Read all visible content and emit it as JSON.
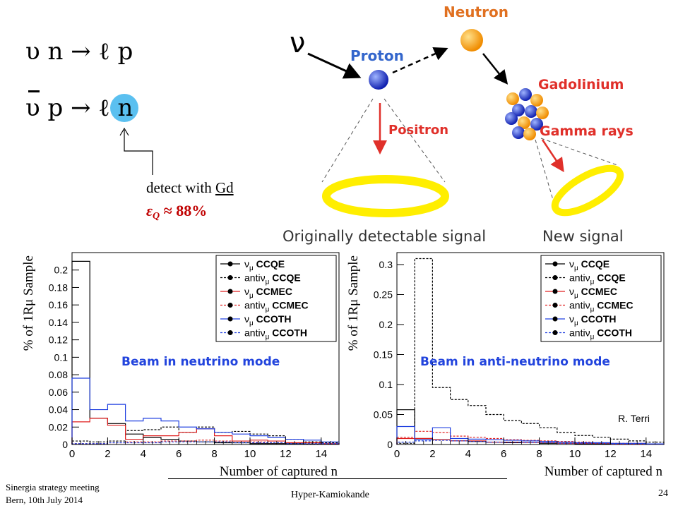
{
  "equations": {
    "eq1_text": "υ n → ℓ p",
    "eq2_left": "υ p → ℓ ",
    "eq2_n": "n"
  },
  "annotation": {
    "detect_prefix": "detect with ",
    "detect_element": "Gd",
    "efficiency_symbol": "ε",
    "efficiency_sub": "Q",
    "efficiency_value": " ≈ 88%"
  },
  "schematic": {
    "nu_symbol": "ν",
    "proton": "Proton",
    "neutron": "Neutron",
    "gadolinium": "Gadolinium",
    "positron": "Positron",
    "gamma_rays": "Gamma rays",
    "label_original": "Originally detectable signal",
    "label_new": "New signal",
    "colors": {
      "blue_label": "#3366cc",
      "orange_label": "#e07020",
      "red_label": "#e0302a",
      "ring": "#ffee00"
    }
  },
  "chart_data": [
    {
      "type": "histogram",
      "ylabel": "% of 1Rμ Sample",
      "xlabel": "Number of captured n",
      "annotation": "Beam in neutrino mode",
      "xlim": [
        0,
        15
      ],
      "ylim": [
        0,
        0.22
      ],
      "xticks": [
        "0",
        "2",
        "4",
        "6",
        "8",
        "10",
        "12",
        "14"
      ],
      "yticks": [
        "0",
        "0.02",
        "0.04",
        "0.06",
        "0.08",
        "0.1",
        "0.12",
        "0.14",
        "0.16",
        "0.18",
        "0.2"
      ],
      "bins": [
        0,
        1,
        2,
        3,
        4,
        5,
        6,
        7,
        8,
        9,
        10,
        11,
        12,
        13,
        14,
        15
      ],
      "legend_position": "top-right",
      "series": [
        {
          "name_pre": "ν",
          "name_sub": "μ",
          "name_post": " CCQE",
          "color": "#000000",
          "dash": false,
          "values": [
            0.21,
            0.03,
            0.024,
            0.012,
            0.008,
            0.006,
            0.004,
            0.003,
            0.002,
            0.002,
            0.001,
            0.001,
            0.001,
            0.0005,
            0.0005
          ]
        },
        {
          "name_pre": "antiν",
          "name_sub": "μ",
          "name_post": " CCQE",
          "color": "#000000",
          "dash": true,
          "values": [
            0.004,
            0.003,
            0.004,
            0.016,
            0.017,
            0.02,
            0.014,
            0.02,
            0.014,
            0.015,
            0.012,
            0.01,
            0.006,
            0.003,
            0.002
          ]
        },
        {
          "name_pre": "ν",
          "name_sub": "μ",
          "name_post": " CCMEC",
          "color": "#e02020",
          "dash": false,
          "values": [
            0.026,
            0.03,
            0.022,
            0.006,
            0.01,
            0.01,
            0.014,
            0.018,
            0.01,
            0.004,
            0.005,
            0.004,
            0.002,
            0.002,
            0.001
          ]
        },
        {
          "name_pre": "antiν",
          "name_sub": "μ",
          "name_post": " CCMEC",
          "color": "#e02020",
          "dash": true,
          "values": [
            0.001,
            0.001,
            0.002,
            0.003,
            0.003,
            0.004,
            0.004,
            0.005,
            0.004,
            0.004,
            0.003,
            0.002,
            0.002,
            0.001,
            0.001
          ]
        },
        {
          "name_pre": "ν",
          "name_sub": "μ",
          "name_post": " CCOTH",
          "color": "#2040e0",
          "dash": false,
          "values": [
            0.076,
            0.04,
            0.046,
            0.027,
            0.03,
            0.027,
            0.02,
            0.018,
            0.014,
            0.012,
            0.01,
            0.008,
            0.006,
            0.005,
            0.003
          ]
        },
        {
          "name_pre": "antiν",
          "name_sub": "μ",
          "name_post": " CCOTH",
          "color": "#2040e0",
          "dash": true,
          "values": [
            0.001,
            0.001,
            0.002,
            0.002,
            0.002,
            0.003,
            0.003,
            0.003,
            0.003,
            0.002,
            0.002,
            0.002,
            0.001,
            0.001,
            0.001
          ]
        }
      ]
    },
    {
      "type": "histogram",
      "ylabel": "% of 1Rμ Sample",
      "xlabel": "Number of captured n",
      "annotation": "Beam in anti-neutrino mode",
      "credit": "R. Terri",
      "xlim": [
        0,
        15
      ],
      "ylim": [
        0,
        0.32
      ],
      "xticks": [
        "0",
        "2",
        "4",
        "6",
        "8",
        "10",
        "12",
        "14"
      ],
      "yticks": [
        "0",
        "0.05",
        "0.1",
        "0.15",
        "0.2",
        "0.25",
        "0.3"
      ],
      "bins": [
        0,
        1,
        2,
        3,
        4,
        5,
        6,
        7,
        8,
        9,
        10,
        11,
        12,
        13,
        14,
        15
      ],
      "legend_position": "top-right",
      "series": [
        {
          "name_pre": "ν",
          "name_sub": "μ",
          "name_post": " CCQE",
          "color": "#000000",
          "dash": false,
          "values": [
            0.058,
            0.01,
            0.008,
            0.006,
            0.005,
            0.004,
            0.003,
            0.003,
            0.002,
            0.002,
            0.001,
            0.001,
            0.001,
            0.001,
            0.0005
          ]
        },
        {
          "name_pre": "antiν",
          "name_sub": "μ",
          "name_post": " CCQE",
          "color": "#000000",
          "dash": true,
          "values": [
            0.002,
            0.31,
            0.095,
            0.075,
            0.065,
            0.05,
            0.04,
            0.035,
            0.028,
            0.02,
            0.015,
            0.012,
            0.009,
            0.006,
            0.004
          ]
        },
        {
          "name_pre": "ν",
          "name_sub": "μ",
          "name_post": " CCMEC",
          "color": "#e02020",
          "dash": false,
          "values": [
            0.01,
            0.01,
            0.008,
            0.006,
            0.006,
            0.004,
            0.004,
            0.003,
            0.003,
            0.002,
            0.002,
            0.002,
            0.001,
            0.001,
            0.001
          ]
        },
        {
          "name_pre": "antiν",
          "name_sub": "μ",
          "name_post": " CCMEC",
          "color": "#e02020",
          "dash": true,
          "values": [
            0.012,
            0.022,
            0.02,
            0.014,
            0.012,
            0.01,
            0.008,
            0.007,
            0.006,
            0.005,
            0.004,
            0.003,
            0.002,
            0.002,
            0.001
          ]
        },
        {
          "name_pre": "ν",
          "name_sub": "μ",
          "name_post": " CCOTH",
          "color": "#2040e0",
          "dash": false,
          "values": [
            0.03,
            0.008,
            0.028,
            0.01,
            0.009,
            0.008,
            0.007,
            0.006,
            0.005,
            0.004,
            0.003,
            0.003,
            0.002,
            0.002,
            0.001
          ]
        },
        {
          "name_pre": "antiν",
          "name_sub": "μ",
          "name_post": " CCOTH",
          "color": "#2040e0",
          "dash": true,
          "values": [
            0.004,
            0.006,
            0.007,
            0.006,
            0.005,
            0.004,
            0.004,
            0.003,
            0.003,
            0.002,
            0.002,
            0.002,
            0.001,
            0.001,
            0.001
          ]
        }
      ]
    }
  ],
  "footer": {
    "meeting_line1": "Sinergia strategy meeting",
    "meeting_line2": "Bern, 10th July 2014",
    "center": "Hyper-Kamiokande",
    "page": "24"
  }
}
